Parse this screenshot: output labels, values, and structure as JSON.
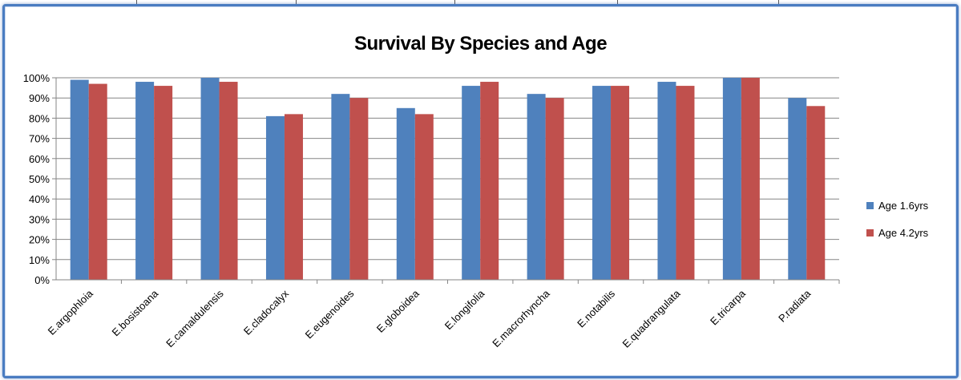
{
  "chart_data": {
    "type": "bar",
    "title": "Survival By Species and Age",
    "categories": [
      "E.argophloia",
      "E.bosistoana",
      "E.camaldulensis",
      "E.cladocalyx",
      "E.eugenoides",
      "E.globoidea",
      "E.longifolia",
      "E.macrorhyncha",
      "E.notabilis",
      "E.quadrangulata",
      "E.tricarpa",
      "P.radiata"
    ],
    "series": [
      {
        "name": "Age 1.6yrs",
        "color": "#4f81bd",
        "values": [
          99,
          98,
          100,
          81,
          92,
          85,
          96,
          92,
          96,
          98,
          100,
          90
        ]
      },
      {
        "name": "Age 4.2yrs",
        "color": "#c0504d",
        "values": [
          97,
          96,
          98,
          82,
          90,
          82,
          98,
          90,
          96,
          96,
          100,
          86
        ]
      }
    ],
    "yticks": [
      "0%",
      "10%",
      "20%",
      "30%",
      "40%",
      "50%",
      "60%",
      "70%",
      "80%",
      "90%",
      "100%"
    ],
    "ylim": [
      0,
      100
    ],
    "grid": true,
    "legend": "right"
  }
}
